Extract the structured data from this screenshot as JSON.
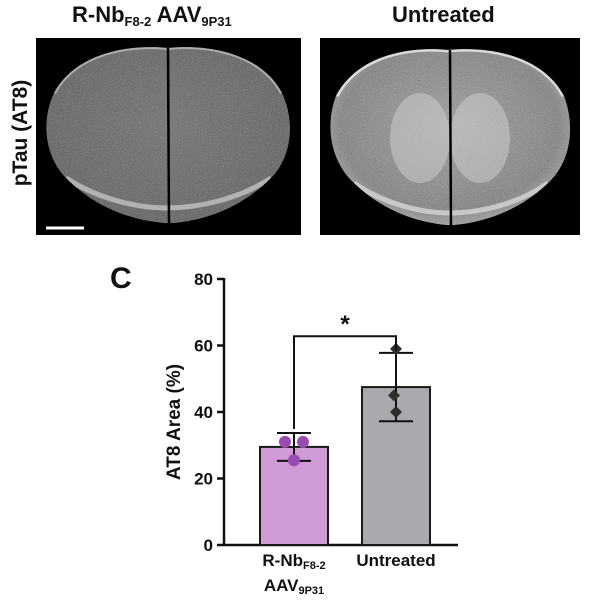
{
  "figure": {
    "panel_letter": "C",
    "row_label": "pTau (AT8)",
    "header_left": {
      "main": "R-Nb",
      "sub": "F8-2",
      "main2": " AAV",
      "sub2": "9P31"
    },
    "header_right": "Untreated"
  },
  "chart_data": {
    "type": "bar",
    "categories": [
      "R-NbF8-2 AAV9P31",
      "Untreated"
    ],
    "category_labels": [
      {
        "line1_main": "R-Nb",
        "line1_sub": "F8-2",
        "line2_main": "AAV",
        "line2_sub": "9P31"
      },
      {
        "line1_main": "Untreated"
      }
    ],
    "values": [
      29.5,
      47.5
    ],
    "error": [
      4.2,
      10.3
    ],
    "points": [
      [
        31.0,
        31.0,
        25.5
      ],
      [
        59.0,
        45.0,
        40.0
      ]
    ],
    "ylabel": "AT8 Area (%)",
    "xlabel": "",
    "ylim": [
      0,
      80
    ],
    "yticks": [
      0,
      20,
      40,
      60,
      80
    ],
    "significance": "*",
    "colors": {
      "bars": [
        "#cf9ad6",
        "#a9a9ae"
      ],
      "points": [
        "#9a4bb0",
        "#2e2e2e"
      ]
    },
    "marker_shapes": [
      "circle",
      "diamond"
    ],
    "grid": false
  }
}
